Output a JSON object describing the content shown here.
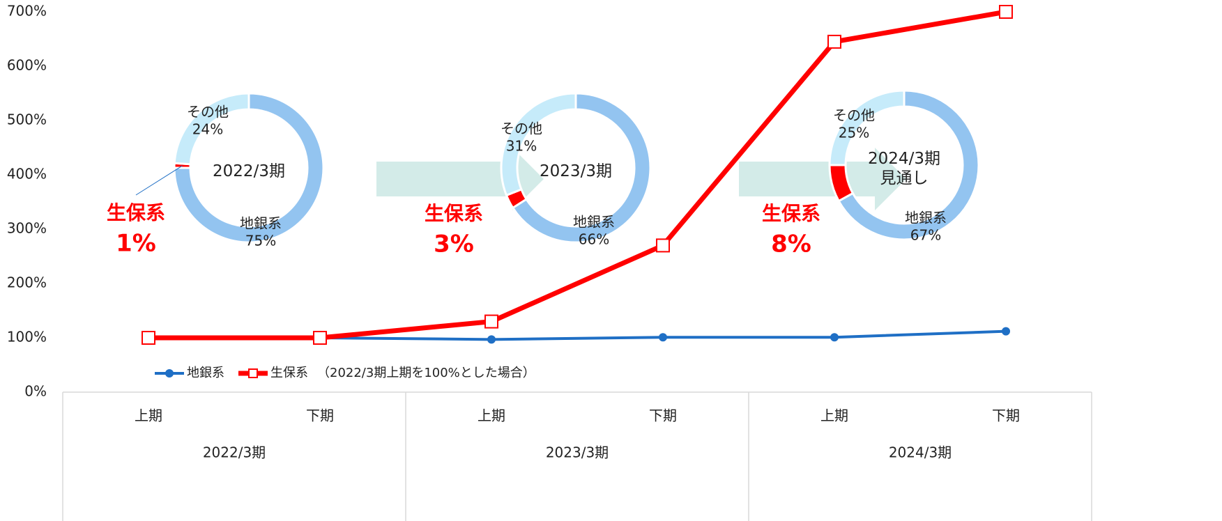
{
  "chart_data": [
    {
      "type": "line",
      "categories": [
        "上期",
        "下期",
        "上期",
        "下期",
        "上期",
        "下期"
      ],
      "groups": [
        "2022/3期",
        "2023/3期",
        "2024/3期"
      ],
      "series": [
        {
          "name": "地銀系",
          "color": "#1f6fc5",
          "values": [
            100,
            100,
            97,
            101,
            101,
            112
          ]
        },
        {
          "name": "生保系",
          "color": "#ff0000",
          "values": [
            100,
            100,
            130,
            270,
            645,
            700
          ]
        }
      ],
      "legend_note": "（2022/3期上期を100%とした場合）",
      "ylim": [
        0,
        700
      ],
      "yticks": [
        {
          "value": 0,
          "label": "0%"
        },
        {
          "value": 100,
          "label": "100%"
        },
        {
          "value": 200,
          "label": "200%"
        },
        {
          "value": 300,
          "label": "300%"
        },
        {
          "value": 400,
          "label": "400%"
        },
        {
          "value": 500,
          "label": "500%"
        },
        {
          "value": 600,
          "label": "600%"
        },
        {
          "value": 700,
          "label": "700%"
        }
      ],
      "legend": "bottom-left"
    },
    {
      "type": "donut",
      "title": "2022/3期",
      "categories": [
        "地銀系",
        "生保系",
        "その他"
      ],
      "values": [
        75,
        1,
        24
      ],
      "value_labels": [
        "75%",
        "1%",
        "24%"
      ],
      "colors": [
        "#93c4f0",
        "#ff0000",
        "#c6ebfa"
      ]
    },
    {
      "type": "donut",
      "title": "2023/3期",
      "categories": [
        "地銀系",
        "生保系",
        "その他"
      ],
      "values": [
        66,
        3,
        31
      ],
      "value_labels": [
        "66%",
        "3%",
        "31%"
      ],
      "colors": [
        "#93c4f0",
        "#ff0000",
        "#c6ebfa"
      ]
    },
    {
      "type": "donut",
      "title": "2024/3期\n見通し",
      "categories": [
        "地銀系",
        "生保系",
        "その他"
      ],
      "values": [
        67,
        8,
        25
      ],
      "value_labels": [
        "67%",
        "8%",
        "25%"
      ],
      "colors": [
        "#93c4f0",
        "#ff0000",
        "#c6ebfa"
      ]
    }
  ]
}
